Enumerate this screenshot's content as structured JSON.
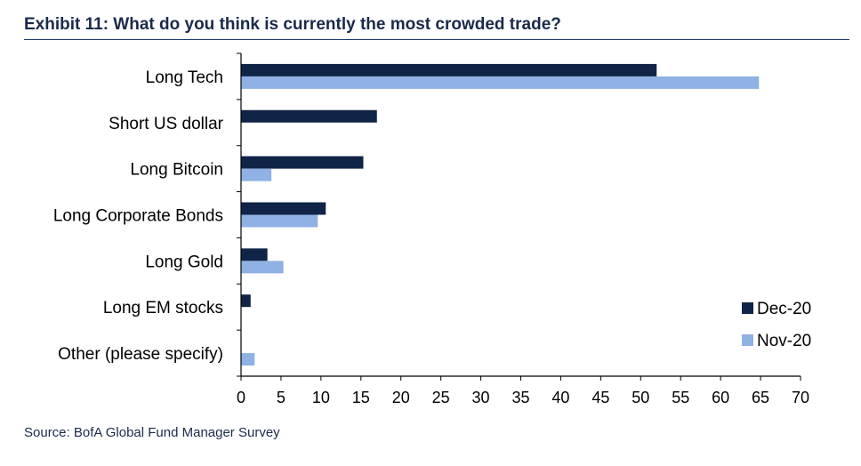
{
  "header": {
    "title": "Exhibit 11: What do you think is currently the most crowded trade?"
  },
  "footer": {
    "source": "Source: BofA Global Fund Manager Survey"
  },
  "colors": {
    "dec": "#0f2447",
    "nov": "#8fb1e4",
    "axis": "#000000"
  },
  "chart_data": {
    "type": "bar",
    "orientation": "horizontal",
    "categories": [
      "Long Tech",
      "Short US dollar",
      "Long Bitcoin",
      "Long Corporate Bonds",
      "Long Gold",
      "Long EM stocks",
      "Other (please specify)"
    ],
    "series": [
      {
        "name": "Dec-20",
        "values": [
          52,
          17,
          15.3,
          10.6,
          3.3,
          1.2,
          0
        ]
      },
      {
        "name": "Nov-20",
        "values": [
          64.8,
          0,
          3.8,
          9.6,
          5.3,
          0,
          1.7
        ]
      }
    ],
    "xlim": [
      0,
      70
    ],
    "xticks": [
      "0",
      "5",
      "10",
      "15",
      "20",
      "25",
      "30",
      "35",
      "40",
      "45",
      "50",
      "55",
      "60",
      "65",
      "70"
    ],
    "grid": false,
    "legend_position": "bottom-right"
  }
}
